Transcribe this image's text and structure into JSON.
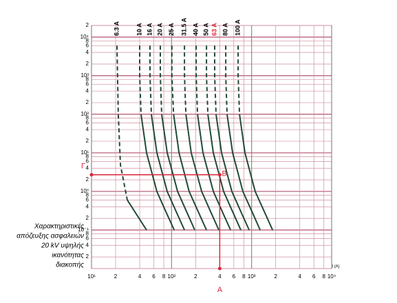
{
  "chart_data": {
    "type": "line",
    "log_x": true,
    "log_y": true,
    "grid": true,
    "grid_color": "#cf8f9f",
    "x_label": "I (A)",
    "caption_lines": [
      "Χαρακτηριστικές",
      "απόζευξης ασφαλειών",
      "20 kV υψηλής",
      "ικανότητας",
      "διακοπής"
    ],
    "xlim": [
      10,
      10000
    ],
    "ylim": [
      0.01,
      20000
    ],
    "xticks": [
      {
        "value": 10,
        "label": "10¹"
      },
      {
        "value": 20,
        "label": "2"
      },
      {
        "value": 40,
        "label": "4"
      },
      {
        "value": 60,
        "label": "6"
      },
      {
        "value": 80,
        "label": "8"
      },
      {
        "value": 100,
        "label": "10²"
      },
      {
        "value": 200,
        "label": "2"
      },
      {
        "value": 400,
        "label": "4"
      },
      {
        "value": 600,
        "label": "6"
      },
      {
        "value": 800,
        "label": "8"
      },
      {
        "value": 1000,
        "label": "10³"
      },
      {
        "value": 2000,
        "label": "2"
      },
      {
        "value": 4000,
        "label": "4"
      },
      {
        "value": 6000,
        "label": "6"
      },
      {
        "value": 8000,
        "label": "8"
      },
      {
        "value": 10000,
        "label": "10⁴"
      }
    ],
    "yticks": [
      {
        "value": 0.02,
        "label": "2"
      },
      {
        "value": 0.04,
        "label": "4"
      },
      {
        "value": 0.06,
        "label": "6"
      },
      {
        "value": 0.08,
        "label": "8"
      },
      {
        "value": 0.1,
        "label": "10⁻¹"
      },
      {
        "value": 0.2,
        "label": "2"
      },
      {
        "value": 0.4,
        "label": "4"
      },
      {
        "value": 0.6,
        "label": "6"
      },
      {
        "value": 0.8,
        "label": "8"
      },
      {
        "value": 1,
        "label": "10⁰"
      },
      2,
      4,
      6,
      8,
      {
        "value": 10,
        "label": "10¹"
      },
      {
        "value": 20,
        "label": "2"
      },
      {
        "value": 40,
        "label": "4"
      },
      {
        "value": 60,
        "label": "6"
      },
      {
        "value": 80,
        "label": "8"
      },
      {
        "value": 100,
        "label": "10²"
      },
      {
        "value": 200,
        "label": "2"
      },
      {
        "value": 400,
        "label": "4"
      },
      {
        "value": 600,
        "label": "6"
      },
      {
        "value": 800,
        "label": "8"
      },
      {
        "value": 1000,
        "label": "10³"
      },
      {
        "value": 2000,
        "label": "2"
      },
      {
        "value": 4000,
        "label": "4"
      },
      {
        "value": 6000,
        "label": "6"
      },
      {
        "value": 8000,
        "label": "8"
      },
      {
        "value": 10000,
        "label": "10⁴"
      },
      {
        "value": 20000,
        "label": "2"
      }
    ],
    "series": [
      {
        "name": "6.3 A",
        "color": "#1f4a36",
        "label_color": "#000000",
        "x": [
          28,
          48.7
        ],
        "values": [
          0.6,
          0.1
        ],
        "dashed_x": [
          20.8,
          21.6,
          23,
          28
        ],
        "dashed_values": [
          6000,
          100,
          4.8,
          0.6
        ]
      },
      {
        "name": "10 A",
        "color": "#1f4a36",
        "label_color": "#000000",
        "x": [
          41.6,
          48.7,
          65.6,
          84.8,
          108
        ],
        "values": [
          100,
          10,
          1,
          0.3,
          0.1
        ],
        "dashed_x": [
          40,
          40,
          41.6
        ],
        "dashed_values": [
          6000,
          1000,
          100
        ]
      },
      {
        "name": "16 A",
        "color": "#1f4a36",
        "label_color": "#000000",
        "x": [
          56,
          65.5,
          88.3,
          114,
          145
        ],
        "values": [
          100,
          10,
          1,
          0.3,
          0.1
        ],
        "dashed_x": [
          53.8,
          53.8,
          56
        ],
        "dashed_values": [
          6000,
          1000,
          100
        ]
      },
      {
        "name": "20 A",
        "color": "#1f4a36",
        "label_color": "#000000",
        "x": [
          75.3,
          88.2,
          119,
          154,
          195
        ],
        "values": [
          100,
          10,
          1,
          0.3,
          0.1
        ],
        "dashed_x": [
          72.4,
          72.4,
          75.3
        ],
        "dashed_values": [
          6000,
          1000,
          100
        ]
      },
      {
        "name": "25 A",
        "color": "#1f4a36",
        "label_color": "#000000",
        "x": [
          106,
          124,
          166,
          215,
          273
        ],
        "values": [
          100,
          10,
          1,
          0.3,
          0.1
        ],
        "dashed_x": [
          101,
          101,
          106
        ],
        "dashed_values": [
          6000,
          1000,
          100
        ]
      },
      {
        "name": "31.5 A",
        "color": "#1f4a36",
        "label_color": "#000000",
        "x": [
          151,
          176,
          238,
          307,
          390
        ],
        "values": [
          100,
          10,
          1,
          0.3,
          0.1
        ],
        "dashed_x": [
          145,
          145,
          151
        ],
        "dashed_values": [
          6000,
          1000,
          100
        ]
      },
      {
        "name": "40 A",
        "color": "#1f4a36",
        "label_color": "#000000",
        "x": [
          211,
          247,
          333,
          430,
          546
        ],
        "values": [
          100,
          10,
          1,
          0.3,
          0.1
        ],
        "dashed_x": [
          203,
          203,
          211
        ],
        "dashed_values": [
          6000,
          1000,
          100
        ]
      },
      {
        "name": "50 A",
        "color": "#1f4a36",
        "label_color": "#000000",
        "x": [
          284,
          332,
          447,
          578,
          734
        ],
        "values": [
          100,
          10,
          1,
          0.3,
          0.1
        ],
        "dashed_x": [
          273,
          273,
          284
        ],
        "dashed_values": [
          6000,
          1000,
          100
        ]
      },
      {
        "name": "63 A",
        "color": "#1f4a36",
        "label_color": "#d9263a",
        "x": [
          360,
          421,
          567,
          734,
          931
        ],
        "values": [
          100,
          10,
          1,
          0.3,
          0.1
        ],
        "dashed_x": [
          346,
          346,
          360
        ],
        "dashed_values": [
          6000,
          1000,
          100
        ]
      },
      {
        "name": "80 A",
        "color": "#1f4a36",
        "label_color": "#000000",
        "x": [
          494,
          579,
          779,
          1010,
          1280
        ],
        "values": [
          100,
          10,
          1,
          0.3,
          0.1
        ],
        "dashed_x": [
          475,
          475,
          494
        ],
        "dashed_values": [
          6000,
          1000,
          100
        ]
      },
      {
        "name": "100 A",
        "color": "#1f4a36",
        "label_color": "#000000",
        "x": [
          706,
          826,
          1110,
          1440,
          1830
        ],
        "values": [
          100,
          10,
          1,
          0.3,
          0.1
        ],
        "dashed_x": [
          679,
          679,
          706
        ],
        "dashed_values": [
          6000,
          1000,
          100
        ]
      }
    ],
    "point": {
      "x": 400,
      "y": 2.7,
      "label": "B",
      "x_label": "A",
      "y_label": "Γ",
      "color": "#d9263a"
    }
  }
}
